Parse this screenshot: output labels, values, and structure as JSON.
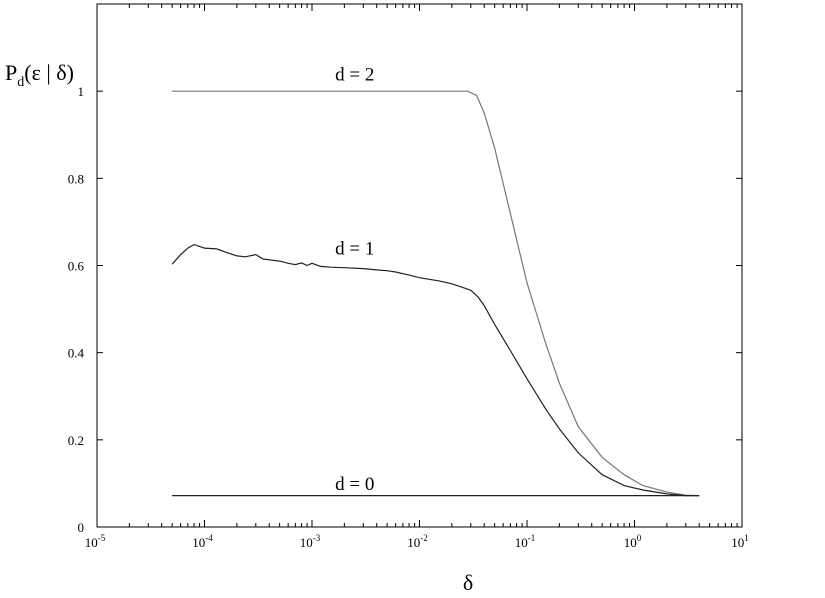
{
  "chart_data": {
    "type": "line",
    "xscale": "log",
    "xlim": [
      1e-05,
      10
    ],
    "ylim": [
      0,
      1.2
    ],
    "xlabel": "δ",
    "ylabel": {
      "main": "P",
      "sub": "d",
      "rest": "(ε | δ)"
    },
    "grid": false,
    "x_ticks": [
      {
        "value": 1e-05,
        "base": "10",
        "exp": "-5"
      },
      {
        "value": 0.0001,
        "base": "10",
        "exp": "-4"
      },
      {
        "value": 0.001,
        "base": "10",
        "exp": "-3"
      },
      {
        "value": 0.01,
        "base": "10",
        "exp": "-2"
      },
      {
        "value": 0.1,
        "base": "10",
        "exp": "-1"
      },
      {
        "value": 1,
        "base": "10",
        "exp": "0"
      },
      {
        "value": 10,
        "base": "10",
        "exp": "1"
      }
    ],
    "y_ticks": [
      {
        "value": 0,
        "label": "0"
      },
      {
        "value": 0.2,
        "label": "0.2"
      },
      {
        "value": 0.4,
        "label": "0.4"
      },
      {
        "value": 0.6,
        "label": "0.6"
      },
      {
        "value": 0.8,
        "label": "0.8"
      },
      {
        "value": 1,
        "label": "1"
      }
    ],
    "series": [
      {
        "name": "d = 2",
        "color": "#777777",
        "label_at": {
          "x": 0.0025,
          "y": 1.025
        },
        "x": [
          5e-05,
          0.00013,
          0.0003,
          0.0008,
          0.002,
          0.005,
          0.01,
          0.02,
          0.028,
          0.034,
          0.04,
          0.05,
          0.07,
          0.1,
          0.15,
          0.2,
          0.3,
          0.5,
          0.8,
          1.2,
          2,
          3,
          4
        ],
        "y": [
          1,
          1,
          1,
          1,
          1,
          1,
          1,
          1,
          1,
          0.99,
          0.95,
          0.87,
          0.72,
          0.56,
          0.42,
          0.33,
          0.23,
          0.16,
          0.12,
          0.095,
          0.08,
          0.073,
          0.072
        ]
      },
      {
        "name": "d = 1",
        "color": "#222222",
        "label_at": {
          "x": 0.0025,
          "y": 0.625
        },
        "x": [
          5e-05,
          6e-05,
          7e-05,
          8e-05,
          0.0001,
          0.00013,
          0.00016,
          0.0002,
          0.00024,
          0.0003,
          0.00035,
          0.0004,
          0.0005,
          0.0006,
          0.0007,
          0.0008,
          0.0009,
          0.001,
          0.0012,
          0.0015,
          0.002,
          0.003,
          0.004,
          0.005,
          0.006,
          0.008,
          0.01,
          0.015,
          0.02,
          0.025,
          0.03,
          0.035,
          0.04,
          0.05,
          0.07,
          0.1,
          0.15,
          0.2,
          0.3,
          0.5,
          0.8,
          1.2,
          2,
          3,
          4
        ],
        "y": [
          0.603,
          0.625,
          0.64,
          0.648,
          0.64,
          0.638,
          0.63,
          0.622,
          0.62,
          0.625,
          0.615,
          0.613,
          0.61,
          0.605,
          0.602,
          0.606,
          0.6,
          0.605,
          0.598,
          0.596,
          0.595,
          0.593,
          0.59,
          0.588,
          0.585,
          0.578,
          0.572,
          0.565,
          0.558,
          0.55,
          0.543,
          0.528,
          0.508,
          0.465,
          0.405,
          0.34,
          0.27,
          0.225,
          0.17,
          0.12,
          0.095,
          0.085,
          0.076,
          0.072,
          0.072
        ]
      },
      {
        "name": "d = 0",
        "color": "#222222",
        "label_at": {
          "x": 0.0025,
          "y": 0.085
        },
        "x": [
          5e-05,
          4
        ],
        "y": [
          0.072,
          0.072
        ]
      }
    ]
  }
}
